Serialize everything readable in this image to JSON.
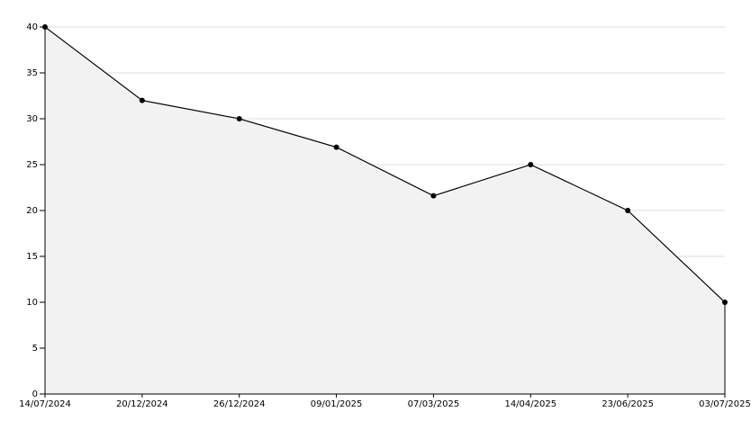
{
  "chart_data": {
    "type": "area",
    "categories": [
      "14/07/2024",
      "20/12/2024",
      "26/12/2024",
      "09/01/2025",
      "07/03/2025",
      "14/04/2025",
      "23/06/2025",
      "03/07/2025"
    ],
    "values": [
      40,
      32,
      30,
      26.9,
      21.6,
      25,
      20,
      10
    ],
    "color": "#000000",
    "fill": "#f2f2f2",
    "ylim": [
      0,
      40
    ],
    "yticks": [
      0,
      5,
      10,
      15,
      20,
      25,
      30,
      35,
      40
    ],
    "grid": true
  }
}
